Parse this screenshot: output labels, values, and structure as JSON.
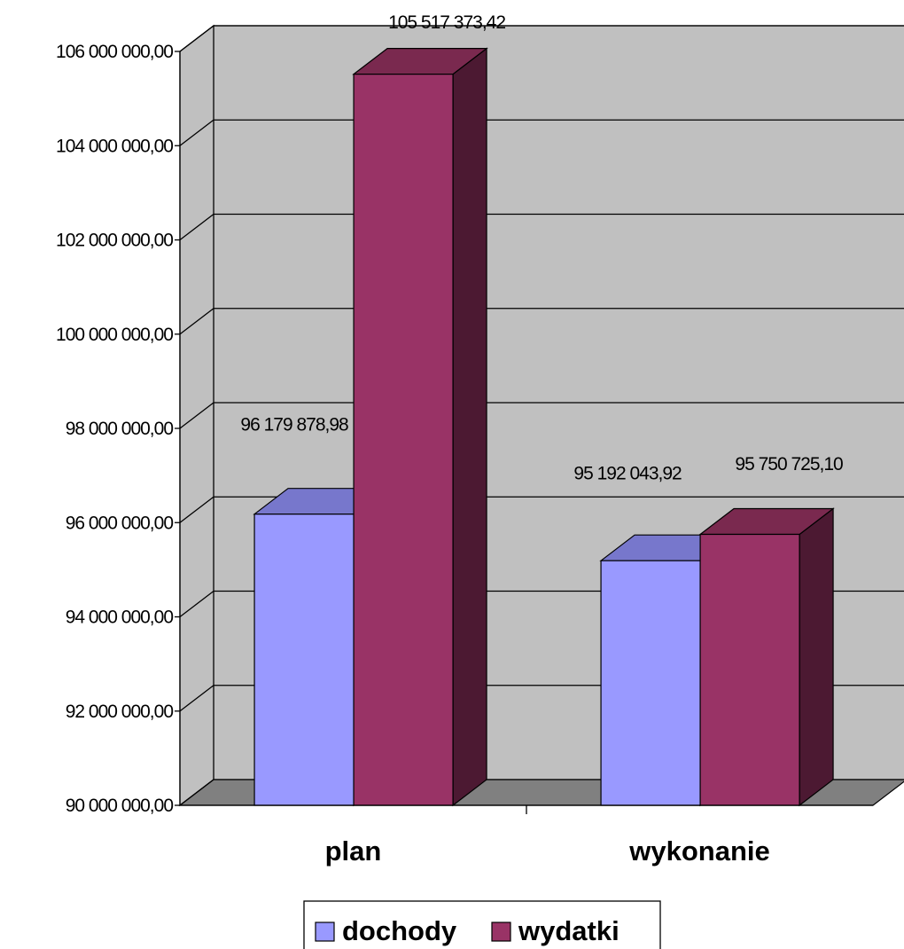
{
  "chart_data": {
    "type": "bar",
    "title": "",
    "xlabel": "",
    "ylabel": "",
    "categories": [
      "plan",
      "wykonanie"
    ],
    "series": [
      {
        "name": "dochody",
        "values": [
          96179878.98,
          95192043.92
        ],
        "labels": [
          "96 179 878,98",
          "95 192 043,92"
        ]
      },
      {
        "name": "wydatki",
        "values": [
          105517373.42,
          95750725.1
        ],
        "labels": [
          "105 517 373,42",
          "95 750 725,10"
        ]
      }
    ],
    "ylim": [
      90000000,
      106000000
    ],
    "yticks": [
      90000000,
      92000000,
      94000000,
      96000000,
      98000000,
      100000000,
      102000000,
      104000000,
      106000000
    ],
    "ytick_labels": [
      "90 000 000,00",
      "92 000 000,00",
      "94 000 000,00",
      "96 000 000,00",
      "98 000 000,00",
      "100 000 000,00",
      "102 000 000,00",
      "104 000 000,00",
      "106 000 000,00"
    ],
    "grid": true,
    "legend": "bottom",
    "style": "3d-clustered-column",
    "colors": {
      "dochody": "#9999ff",
      "dochody_top": "#7777cc",
      "wydatki": "#993366",
      "wydatki_top": "#7a294f",
      "wydatki_side": "#4c1932",
      "wall": "#c0c0c0",
      "floor": "#808080"
    }
  }
}
